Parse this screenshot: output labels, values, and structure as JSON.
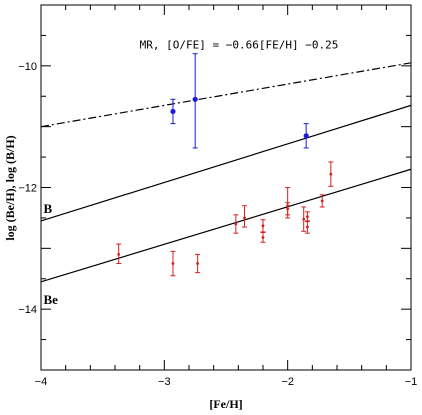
{
  "chart_data": {
    "type": "scatter",
    "xlabel": "[Fe/H]",
    "ylabel": "log (Be/H),  log (B/H)",
    "xlim": [
      -4,
      -1
    ],
    "ylim": [
      -15,
      -9
    ],
    "x_ticks": [
      -4,
      -3,
      -2,
      -1
    ],
    "y_ticks": [
      -10,
      -12,
      -14
    ],
    "annotations": [
      {
        "text": "MR, [O/FE] = −0.66[FE/H] −0.25",
        "x": -3.2,
        "y": -9.65
      },
      {
        "text": "B",
        "x": -3.98,
        "y": -12.35
      },
      {
        "text": "Be",
        "x": -3.98,
        "y": -13.85
      }
    ],
    "model_lines": [
      {
        "label": "MR",
        "style": "dashdot",
        "x": [
          -4,
          -1
        ],
        "y": [
          -11.0,
          -9.95
        ]
      },
      {
        "label": "B",
        "style": "solid",
        "x": [
          -4,
          -1
        ],
        "y": [
          -12.55,
          -10.65
        ]
      },
      {
        "label": "Be",
        "style": "solid",
        "x": [
          -4,
          -1
        ],
        "y": [
          -13.55,
          -11.7
        ]
      }
    ],
    "series": [
      {
        "name": "B",
        "color": "#1a1adc",
        "points": [
          {
            "x": -2.93,
            "y": -10.75,
            "ylo": -10.95,
            "yhi": -10.55
          },
          {
            "x": -2.75,
            "y": -10.55,
            "ylo": -11.35,
            "yhi": -9.8
          },
          {
            "x": -1.85,
            "y": -11.15,
            "ylo": -11.35,
            "yhi": -10.95
          }
        ]
      },
      {
        "name": "Be",
        "color": "#d42020",
        "points": [
          {
            "x": -3.37,
            "y": -13.1,
            "ylo": -13.25,
            "yhi": -12.93
          },
          {
            "x": -2.93,
            "y": -13.25,
            "ylo": -13.45,
            "yhi": -13.05
          },
          {
            "x": -2.73,
            "y": -13.25,
            "ylo": -13.4,
            "yhi": -13.1
          },
          {
            "x": -2.42,
            "y": -12.6,
            "ylo": -12.75,
            "yhi": -12.45
          },
          {
            "x": -2.35,
            "y": -12.5,
            "ylo": -12.65,
            "yhi": -12.3
          },
          {
            "x": -2.2,
            "y": -12.63,
            "ylo": -12.73,
            "yhi": -12.53
          },
          {
            "x": -2.2,
            "y": -12.82,
            "ylo": -12.9,
            "yhi": -12.74
          },
          {
            "x": -2.0,
            "y": -12.3,
            "ylo": -12.5,
            "yhi": -12.0
          },
          {
            "x": -2.0,
            "y": -12.35,
            "ylo": -12.45,
            "yhi": -12.25
          },
          {
            "x": -1.87,
            "y": -12.52,
            "ylo": -12.72,
            "yhi": -12.32
          },
          {
            "x": -1.84,
            "y": -12.65,
            "ylo": -12.75,
            "yhi": -12.55
          },
          {
            "x": -1.84,
            "y": -12.48,
            "ylo": -12.56,
            "yhi": -12.4
          },
          {
            "x": -1.72,
            "y": -12.22,
            "ylo": -12.32,
            "yhi": -12.12
          },
          {
            "x": -1.65,
            "y": -11.78,
            "ylo": -11.98,
            "yhi": -11.58
          }
        ]
      }
    ]
  }
}
